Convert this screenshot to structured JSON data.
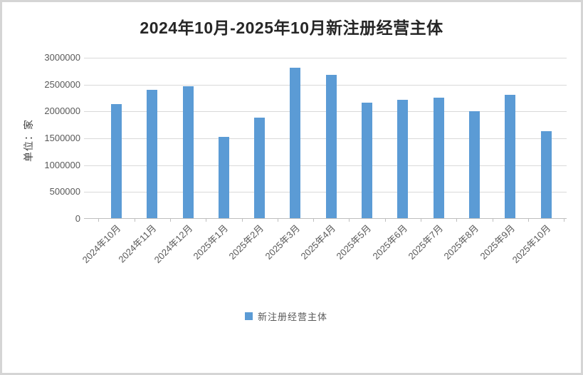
{
  "window": {
    "background_color": "#ffffff",
    "border_color": "#d5d5d5"
  },
  "chart_data": {
    "type": "bar",
    "title": "2024年10月-2025年10月新注册经营主体",
    "ylabel": "单位：家",
    "xlabel": "",
    "categories": [
      "2024年10月",
      "2024年11月",
      "2024年12月",
      "2025年1月",
      "2025年2月",
      "2025年3月",
      "2025年4月",
      "2025年5月",
      "2025年6月",
      "2025年7月",
      "2025年8月",
      "2025年9月",
      "2025年10月"
    ],
    "series": [
      {
        "name": "新注册经营主体",
        "color": "#5b9bd5",
        "values": [
          2120000,
          2390000,
          2450000,
          1520000,
          1870000,
          2800000,
          2670000,
          2150000,
          2210000,
          2240000,
          1990000,
          2300000,
          1620000
        ]
      }
    ],
    "ylim": [
      0,
      3000000
    ],
    "yticks": [
      0,
      500000,
      1000000,
      1500000,
      2000000,
      2500000,
      3000000
    ],
    "grid": "horizontal",
    "gridline_color": "#d9d9d9",
    "axis_color": "#bfbfbf",
    "tick_label_color": "#595959",
    "title_color": "#262626",
    "legend_position": "bottom",
    "x_label_rotation_deg": 45
  }
}
